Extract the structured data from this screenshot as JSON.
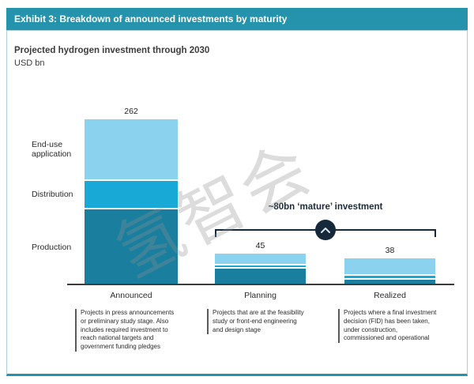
{
  "header": {
    "title": "Exhibit 3: Breakdown of announced investments by maturity"
  },
  "watermark": {
    "text": "氢智会"
  },
  "colors": {
    "header_band": "#2593AB",
    "panel_border": "#A9CFDC",
    "end_use": "#8BD2EE",
    "distribution": "#18A9D6",
    "production": "#1A7F9F",
    "bracket": "#15293B",
    "axis": "#3D3D3D"
  },
  "chart_data": {
    "type": "bar",
    "subtype": "stacked",
    "title": "Projected hydrogen investment through 2030",
    "ylabel": "USD bn",
    "xlabel": "",
    "grid": false,
    "legend_position": "left-of-first-bar",
    "categories": [
      "Announced",
      "Planning",
      "Realized"
    ],
    "series": [
      {
        "name": "End-use application",
        "label": "End-use\napplication",
        "color": "#8BD2EE",
        "values": [
          97,
          17,
          26
        ]
      },
      {
        "name": "Distribution",
        "label": "Distribution",
        "color": "#18A9D6",
        "values": [
          43,
          3,
          4
        ]
      },
      {
        "name": "Production",
        "label": "Production",
        "color": "#1A7F9F",
        "values": [
          122,
          25,
          8
        ]
      }
    ],
    "totals": [
      262,
      45,
      38
    ],
    "annotation": {
      "label": "~80bn ‘mature’ investment",
      "spans": [
        "Planning",
        "Realized"
      ],
      "icon": "chevron-up-in-dark-circle"
    },
    "footnotes": [
      "Projects in press announcements\nor preliminary study stage. Also\nincludes required investment to\nreach national targets and\ngovernment funding pledges",
      "Projects that are at the feasibility\nstudy or front-end engineering\nand design stage",
      "Projects where a final investment\ndecision (FID) has been taken,\nunder construction,\ncommissioned and operational"
    ]
  }
}
